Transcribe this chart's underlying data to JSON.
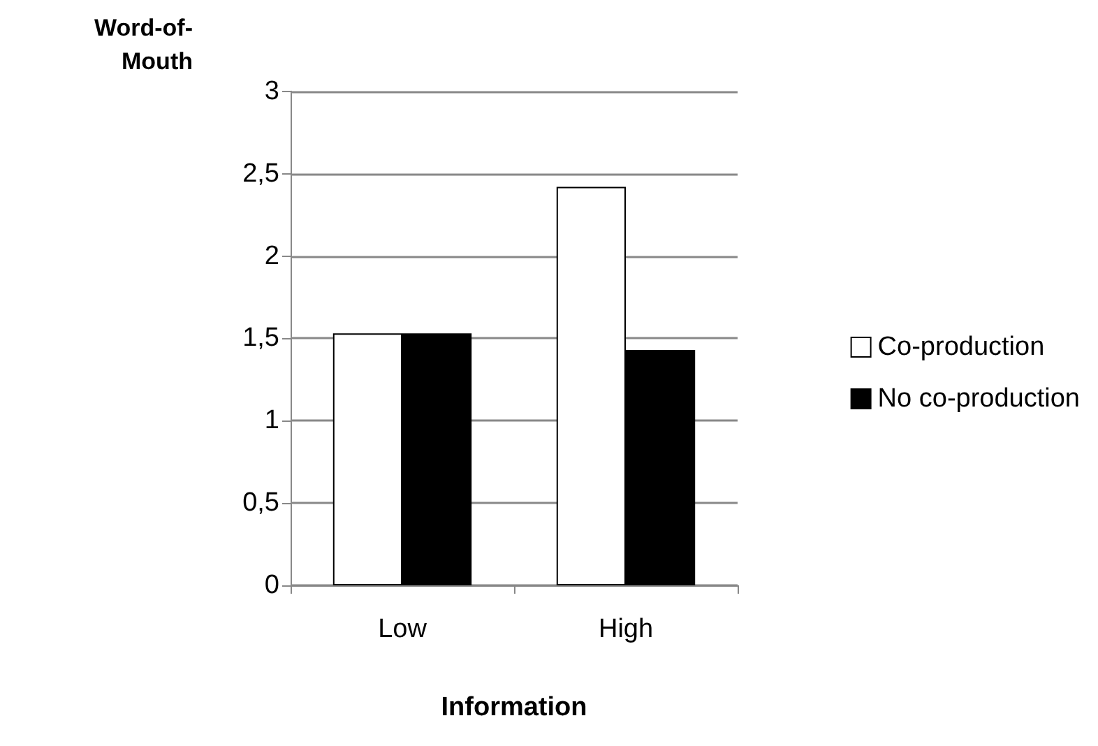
{
  "chart_data": {
    "type": "bar",
    "xlabel": "Information",
    "ylabel": "Word-of-\nMouth",
    "categories": [
      "Low",
      "High"
    ],
    "series": [
      {
        "name": "Co-production",
        "color": "#ffffff",
        "values": [
          1.53,
          2.42
        ]
      },
      {
        "name": "No co-production",
        "color": "#000000",
        "values": [
          1.53,
          1.43
        ]
      }
    ],
    "ylim": [
      0,
      3
    ],
    "yticks": [
      0,
      {
        "value": 0.5,
        "label": "0,5"
      },
      1,
      {
        "value": 1.5,
        "label": "1,5"
      },
      2,
      {
        "value": 2.5,
        "label": "2,5"
      },
      3
    ],
    "grid": "y",
    "legend": "right"
  }
}
